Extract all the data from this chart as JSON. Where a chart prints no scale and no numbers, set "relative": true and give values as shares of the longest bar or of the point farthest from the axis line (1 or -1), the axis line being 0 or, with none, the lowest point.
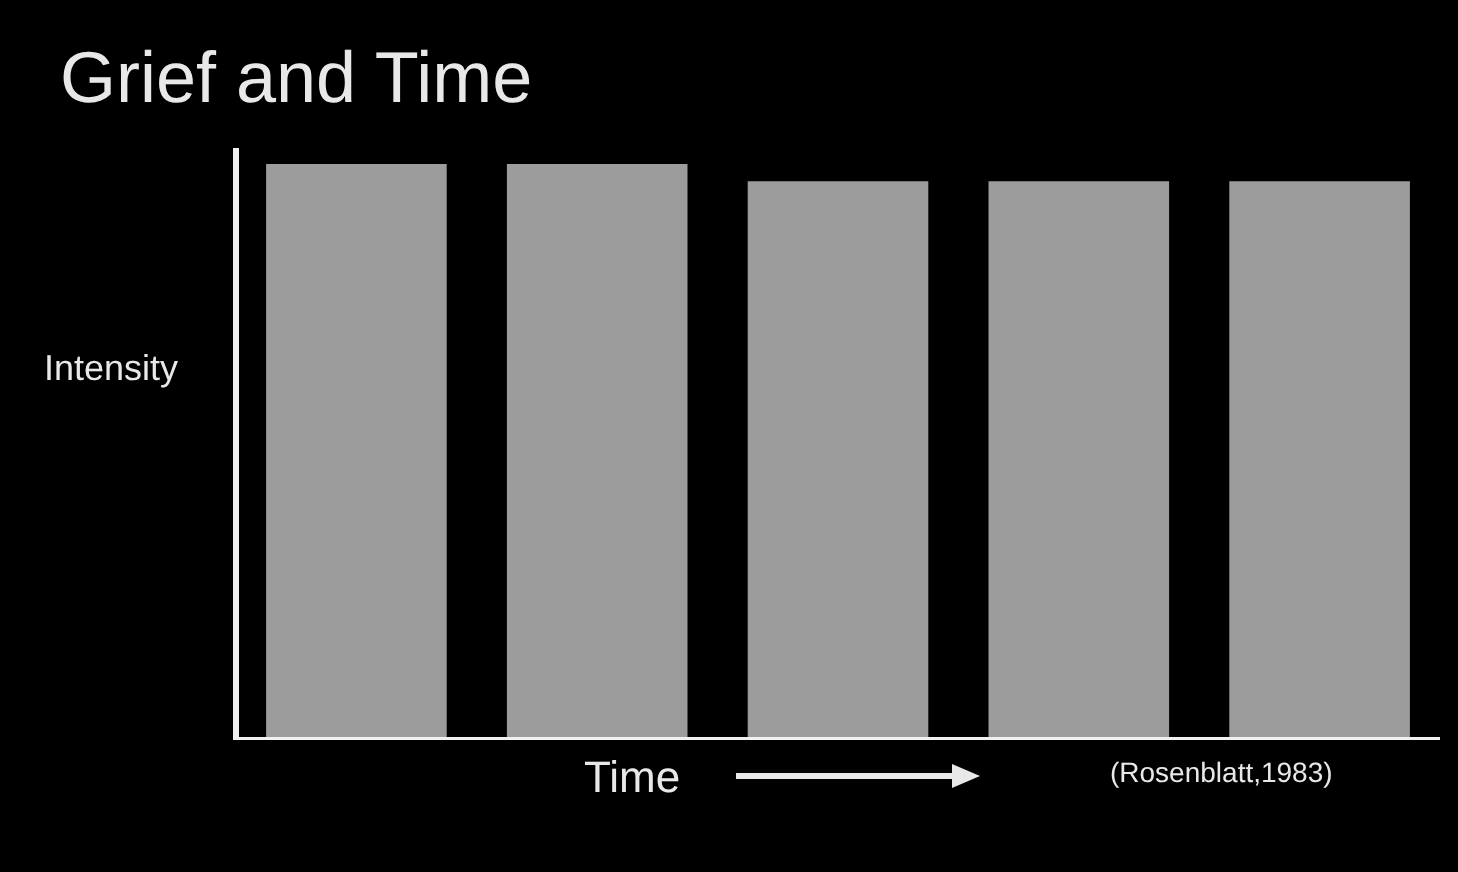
{
  "chart_data": {
    "type": "bar",
    "title": "Grief and Time",
    "xlabel": "Time",
    "ylabel": "Intensity",
    "annotations": [
      "(Rosenblatt,1983)"
    ],
    "categories": [
      null,
      null,
      null,
      null,
      null
    ],
    "values": [
      1,
      1,
      0.97,
      0.97,
      0.97
    ],
    "color": "#9c9c9c",
    "relative": true
  }
}
